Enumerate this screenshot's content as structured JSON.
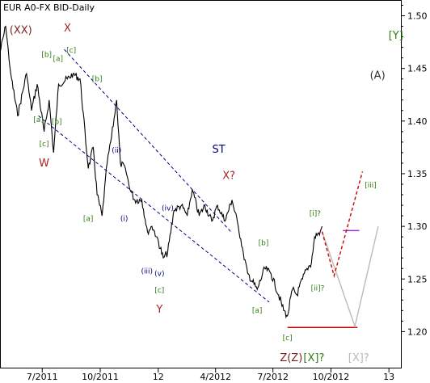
{
  "chart_data": {
    "type": "line",
    "title": "EUR A0-FX BID-Daily",
    "xlim": [
      "2011-04-25",
      "2013-01-20"
    ],
    "ylim": [
      1.165,
      1.515
    ],
    "x_ticks": [
      {
        "date": "2011-07-01",
        "label": "7/2011"
      },
      {
        "date": "2011-10-01",
        "label": "10/2011"
      },
      {
        "date": "2012-01-01",
        "label": "12"
      },
      {
        "date": "2012-04-01",
        "label": "4/2012"
      },
      {
        "date": "2012-07-01",
        "label": "7/2012"
      },
      {
        "date": "2012-10-01",
        "label": "10/2012"
      },
      {
        "date": "2013-01-01",
        "label": "13"
      }
    ],
    "y_ticks": [
      1.2,
      1.25,
      1.3,
      1.35,
      1.4,
      1.45,
      1.5
    ],
    "y_tick_labels": [
      "1.20",
      "1.25",
      "1.30",
      "1.35",
      "1.40",
      "1.45",
      "1.50"
    ],
    "grid": false,
    "series": [
      {
        "color": "#000000",
        "x": [
          "2011-04-25",
          "2011-05-04",
          "2011-05-12",
          "2011-05-23",
          "2011-06-06",
          "2011-06-14",
          "2011-06-23",
          "2011-07-04",
          "2011-07-12",
          "2011-07-19",
          "2011-07-27",
          "2011-08-10",
          "2011-08-19",
          "2011-08-30",
          "2011-09-12",
          "2011-09-20",
          "2011-09-26",
          "2011-10-04",
          "2011-10-12",
          "2011-10-19",
          "2011-10-27",
          "2011-11-02",
          "2011-11-10",
          "2011-11-17",
          "2011-11-25",
          "2011-12-06",
          "2011-12-15",
          "2011-12-22",
          "2011-12-30",
          "2012-01-09",
          "2012-01-16",
          "2012-01-26",
          "2012-02-07",
          "2012-02-16",
          "2012-02-24",
          "2012-03-06",
          "2012-03-15",
          "2012-03-26",
          "2012-04-04",
          "2012-04-16",
          "2012-04-27",
          "2012-05-07",
          "2012-05-15",
          "2012-05-22",
          "2012-06-01",
          "2012-06-06",
          "2012-06-18",
          "2012-06-28",
          "2012-07-10",
          "2012-07-18",
          "2012-07-24",
          "2012-08-01",
          "2012-08-08",
          "2012-08-17",
          "2012-08-24",
          "2012-08-31",
          "2012-09-05",
          "2012-09-14",
          "2012-09-17"
        ],
        "y": [
          1.465,
          1.49,
          1.445,
          1.405,
          1.445,
          1.41,
          1.435,
          1.39,
          1.42,
          1.37,
          1.435,
          1.44,
          1.445,
          1.44,
          1.355,
          1.375,
          1.33,
          1.31,
          1.36,
          1.385,
          1.42,
          1.36,
          1.355,
          1.335,
          1.325,
          1.325,
          1.295,
          1.3,
          1.29,
          1.27,
          1.275,
          1.315,
          1.32,
          1.31,
          1.335,
          1.31,
          1.32,
          1.305,
          1.32,
          1.305,
          1.325,
          1.3,
          1.275,
          1.255,
          1.245,
          1.24,
          1.26,
          1.255,
          1.235,
          1.22,
          1.215,
          1.24,
          1.235,
          1.25,
          1.26,
          1.265,
          1.29,
          1.295,
          1.3
        ]
      }
    ],
    "projection_red": {
      "color": "#cc0000",
      "x": [
        "2012-09-17",
        "2012-10-06",
        "2012-11-20"
      ],
      "y": [
        1.295,
        1.253,
        1.352
      ]
    },
    "projection_gray": {
      "color": "#bbbbbb",
      "x": [
        "2012-09-17",
        "2012-11-08",
        "2012-12-15"
      ],
      "y": [
        1.295,
        1.205,
        1.3
      ]
    },
    "levels": [
      {
        "color": "#cc0000",
        "x": [
          "2012-07-24",
          "2012-11-12"
        ],
        "y": 1.204
      },
      {
        "color": "#9933cc",
        "x": [
          "2012-10-20",
          "2012-11-15"
        ],
        "y": 1.296
      }
    ],
    "channel_lines": [
      {
        "color": "#000080",
        "x": [
          "2011-08-05",
          "2012-04-25"
        ],
        "y": [
          1.468,
          1.295
        ]
      },
      {
        "color": "#000080",
        "x": [
          "2011-06-25",
          "2012-06-25"
        ],
        "y": [
          1.405,
          1.228
        ]
      }
    ],
    "wave_labels": [
      {
        "text": "(XX)",
        "date": "2011-05-28",
        "value": 1.483,
        "color": "#7a1f1f",
        "size": 13
      },
      {
        "text": "X",
        "date": "2011-08-10",
        "value": 1.485,
        "color": "#aa2222",
        "size": 13
      },
      {
        "text": "[b]",
        "date": "2011-07-08",
        "value": 1.461,
        "color": "#2e7d10",
        "size": 9
      },
      {
        "text": "[a]",
        "date": "2011-07-26",
        "value": 1.457,
        "color": "#2e7d10",
        "size": 9
      },
      {
        "text": "[c]",
        "date": "2011-08-16",
        "value": 1.465,
        "color": "#2e7d10",
        "size": 9
      },
      {
        "text": "[b]",
        "date": "2011-09-26",
        "value": 1.438,
        "color": "#2e7d10",
        "size": 9
      },
      {
        "text": "[a]",
        "date": "2011-06-25",
        "value": 1.399,
        "color": "#2e7d10",
        "size": 9
      },
      {
        "text": "[b]",
        "date": "2011-07-24",
        "value": 1.397,
        "color": "#2e7d10",
        "size": 9
      },
      {
        "text": "[c]",
        "date": "2011-07-04",
        "value": 1.376,
        "color": "#2e7d10",
        "size": 9
      },
      {
        "text": "W",
        "date": "2011-07-04",
        "value": 1.357,
        "color": "#aa2222",
        "size": 13
      },
      {
        "text": "(ii)",
        "date": "2011-10-27",
        "value": 1.37,
        "color": "#000080",
        "size": 9
      },
      {
        "text": "ST",
        "date": "2012-04-06",
        "value": 1.37,
        "color": "#000080",
        "size": 13
      },
      {
        "text": "X?",
        "date": "2012-04-22",
        "value": 1.345,
        "color": "#aa2222",
        "size": 13
      },
      {
        "text": "(iv)",
        "date": "2012-01-16",
        "value": 1.315,
        "color": "#000080",
        "size": 9
      },
      {
        "text": "[a]",
        "date": "2011-09-12",
        "value": 1.305,
        "color": "#2e7d10",
        "size": 9
      },
      {
        "text": "(i)",
        "date": "2011-11-08",
        "value": 1.305,
        "color": "#000080",
        "size": 9
      },
      {
        "text": "[b]",
        "date": "2012-06-16",
        "value": 1.282,
        "color": "#2e7d10",
        "size": 9
      },
      {
        "text": "[i]?",
        "date": "2012-09-06",
        "value": 1.31,
        "color": "#2e7d10",
        "size": 9
      },
      {
        "text": "[iii]",
        "date": "2012-12-03",
        "value": 1.337,
        "color": "#2e7d10",
        "size": 9
      },
      {
        "text": "(iii)",
        "date": "2011-12-14",
        "value": 1.255,
        "color": "#000080",
        "size": 9
      },
      {
        "text": "(v)",
        "date": "2012-01-03",
        "value": 1.253,
        "color": "#000080",
        "size": 9
      },
      {
        "text": "[c]",
        "date": "2012-01-03",
        "value": 1.237,
        "color": "#2e7d10",
        "size": 9
      },
      {
        "text": "Y",
        "date": "2012-01-03",
        "value": 1.218,
        "color": "#aa2222",
        "size": 13
      },
      {
        "text": "[ii]?",
        "date": "2012-09-10",
        "value": 1.239,
        "color": "#2e7d10",
        "size": 9
      },
      {
        "text": "[a]",
        "date": "2012-06-06",
        "value": 1.218,
        "color": "#2e7d10",
        "size": 9
      },
      {
        "text": "[c]",
        "date": "2012-07-24",
        "value": 1.192,
        "color": "#2e7d10",
        "size": 9
      },
      {
        "text": "[Y]",
        "date": "2013-01-12",
        "value": 1.478,
        "color": "#2e7d10",
        "size": 13
      },
      {
        "text": "(A)",
        "date": "2012-12-14",
        "value": 1.44,
        "color": "#333333",
        "size": 13
      }
    ],
    "bottom_labels": [
      {
        "text": "Z(Z)",
        "date": "2012-07-30",
        "value": 1.172,
        "color": "#7a1f1f",
        "size": 13
      },
      {
        "text": "[X]?",
        "date": "2012-09-04",
        "value": 1.172,
        "color": "#2e7d10",
        "size": 13
      },
      {
        "text": "[X]?",
        "date": "2012-11-14",
        "value": 1.172,
        "color": "#bbbbbb",
        "size": 13
      }
    ]
  }
}
